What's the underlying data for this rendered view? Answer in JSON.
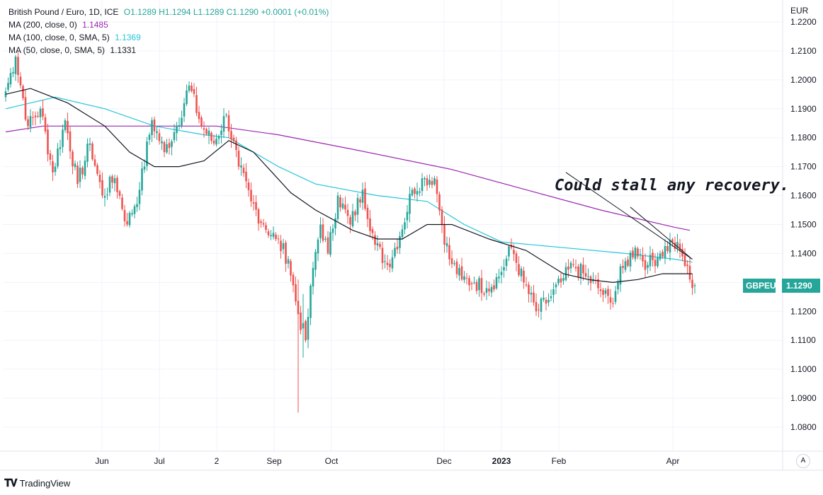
{
  "header": {
    "symbol_title": "British Pound / Euro, 1D, ICE",
    "open": "O1.1289",
    "high": "H1.1294",
    "low": "L1.1289",
    "close": "C1.1290",
    "change": "+0.0001 (+0.01%)"
  },
  "indicators": [
    {
      "label": "MA (200, close, 0)",
      "value": "1.1485",
      "color": "#9c27b0"
    },
    {
      "label": "MA (100, close, 0, SMA, 5)",
      "value": "1.1369",
      "color": "#26c6da"
    },
    {
      "label": "MA (50, close, 0, SMA, 5)",
      "value": "1.1331",
      "color": "#131722"
    }
  ],
  "currency": "EUR",
  "price_tag": {
    "symbol": "GBPEUR",
    "price": "1.1290",
    "color": "#26a69a"
  },
  "annotation": "Could stall any recovery.",
  "branding": "TradingView",
  "auto_scale_button": "A",
  "chart_data": {
    "type": "candlestick",
    "title": "British Pound / Euro, 1D, ICE",
    "ylim": [
      1.075,
      1.222
    ],
    "y_ticks": [
      "1.2200",
      "1.2100",
      "1.2000",
      "1.1900",
      "1.1800",
      "1.1700",
      "1.1600",
      "1.1500",
      "1.1400",
      "1.1300",
      "1.1200",
      "1.1100",
      "1.1000",
      "1.0900",
      "1.0800"
    ],
    "x_ticks": [
      "Jun",
      "Jul",
      "2",
      "Sep",
      "Oct",
      "Dec",
      "2023",
      "Feb",
      "Apr"
    ],
    "up_color": "#26a69a",
    "down_color": "#ef5350",
    "grid": true,
    "close_anchors": [
      [
        0,
        1.196
      ],
      [
        4,
        1.208
      ],
      [
        9,
        1.184
      ],
      [
        14,
        1.19
      ],
      [
        19,
        1.168
      ],
      [
        24,
        1.186
      ],
      [
        29,
        1.164
      ],
      [
        34,
        1.178
      ],
      [
        39,
        1.16
      ],
      [
        44,
        1.166
      ],
      [
        49,
        1.15
      ],
      [
        54,
        1.162
      ],
      [
        59,
        1.186
      ],
      [
        64,
        1.175
      ],
      [
        69,
        1.184
      ],
      [
        74,
        1.198
      ],
      [
        79,
        1.184
      ],
      [
        84,
        1.178
      ],
      [
        89,
        1.188
      ],
      [
        94,
        1.17
      ],
      [
        99,
        1.158
      ],
      [
        104,
        1.15
      ],
      [
        109,
        1.145
      ],
      [
        114,
        1.138
      ],
      [
        118,
        1.119
      ],
      [
        121,
        1.11
      ],
      [
        124,
        1.135
      ],
      [
        127,
        1.15
      ],
      [
        130,
        1.14
      ],
      [
        134,
        1.16
      ],
      [
        139,
        1.15
      ],
      [
        144,
        1.162
      ],
      [
        149,
        1.143
      ],
      [
        154,
        1.136
      ],
      [
        159,
        1.146
      ],
      [
        164,
        1.162
      ],
      [
        169,
        1.166
      ],
      [
        173,
        1.166
      ],
      [
        176,
        1.15
      ],
      [
        179,
        1.138
      ],
      [
        184,
        1.131
      ],
      [
        189,
        1.13
      ],
      [
        194,
        1.128
      ],
      [
        199,
        1.132
      ],
      [
        204,
        1.142
      ],
      [
        209,
        1.13
      ],
      [
        214,
        1.12
      ],
      [
        219,
        1.124
      ],
      [
        224,
        1.13
      ],
      [
        229,
        1.136
      ],
      [
        234,
        1.132
      ],
      [
        239,
        1.128
      ],
      [
        244,
        1.123
      ],
      [
        249,
        1.135
      ],
      [
        254,
        1.142
      ],
      [
        259,
        1.136
      ],
      [
        264,
        1.14
      ],
      [
        269,
        1.144
      ],
      [
        273,
        1.139
      ],
      [
        276,
        1.131
      ],
      [
        278,
        1.129
      ]
    ],
    "extreme_wicks": [
      {
        "candle": 118,
        "low": 1.085,
        "high": 1.131
      },
      {
        "candle": 120,
        "low": 1.104,
        "high": 1.126
      }
    ],
    "ma_200": [
      [
        0,
        1.182
      ],
      [
        15,
        1.184
      ],
      [
        60,
        1.184
      ],
      [
        85,
        1.184
      ],
      [
        110,
        1.181
      ],
      [
        140,
        1.176
      ],
      [
        180,
        1.169
      ],
      [
        210,
        1.162
      ],
      [
        240,
        1.155
      ],
      [
        270,
        1.149
      ],
      [
        276,
        1.148
      ]
    ],
    "ma_100": [
      [
        0,
        1.19
      ],
      [
        20,
        1.194
      ],
      [
        40,
        1.19
      ],
      [
        60,
        1.184
      ],
      [
        80,
        1.181
      ],
      [
        90,
        1.18
      ],
      [
        110,
        1.17
      ],
      [
        125,
        1.164
      ],
      [
        150,
        1.16
      ],
      [
        170,
        1.158
      ],
      [
        185,
        1.15
      ],
      [
        200,
        1.144
      ],
      [
        225,
        1.142
      ],
      [
        250,
        1.14
      ],
      [
        270,
        1.138
      ],
      [
        277,
        1.137
      ]
    ],
    "ma_50": [
      [
        0,
        1.195
      ],
      [
        10,
        1.197
      ],
      [
        25,
        1.192
      ],
      [
        40,
        1.184
      ],
      [
        50,
        1.175
      ],
      [
        60,
        1.17
      ],
      [
        70,
        1.17
      ],
      [
        80,
        1.172
      ],
      [
        90,
        1.179
      ],
      [
        100,
        1.175
      ],
      [
        115,
        1.161
      ],
      [
        125,
        1.155
      ],
      [
        140,
        1.148
      ],
      [
        150,
        1.145
      ],
      [
        160,
        1.145
      ],
      [
        170,
        1.15
      ],
      [
        180,
        1.15
      ],
      [
        195,
        1.145
      ],
      [
        210,
        1.141
      ],
      [
        225,
        1.133
      ],
      [
        235,
        1.131
      ],
      [
        245,
        1.13
      ],
      [
        255,
        1.131
      ],
      [
        265,
        1.133
      ],
      [
        277,
        1.133
      ]
    ],
    "ma_200_color": "#9c27b0",
    "ma_100_color": "#26c6da",
    "ma_50_color": "#131722",
    "annotation_lines": [
      {
        "from": [
          226,
          1.168
        ],
        "to": [
          277,
          1.138
        ]
      },
      {
        "from": [
          252,
          1.156
        ],
        "to": [
          277,
          1.138
        ]
      }
    ]
  }
}
